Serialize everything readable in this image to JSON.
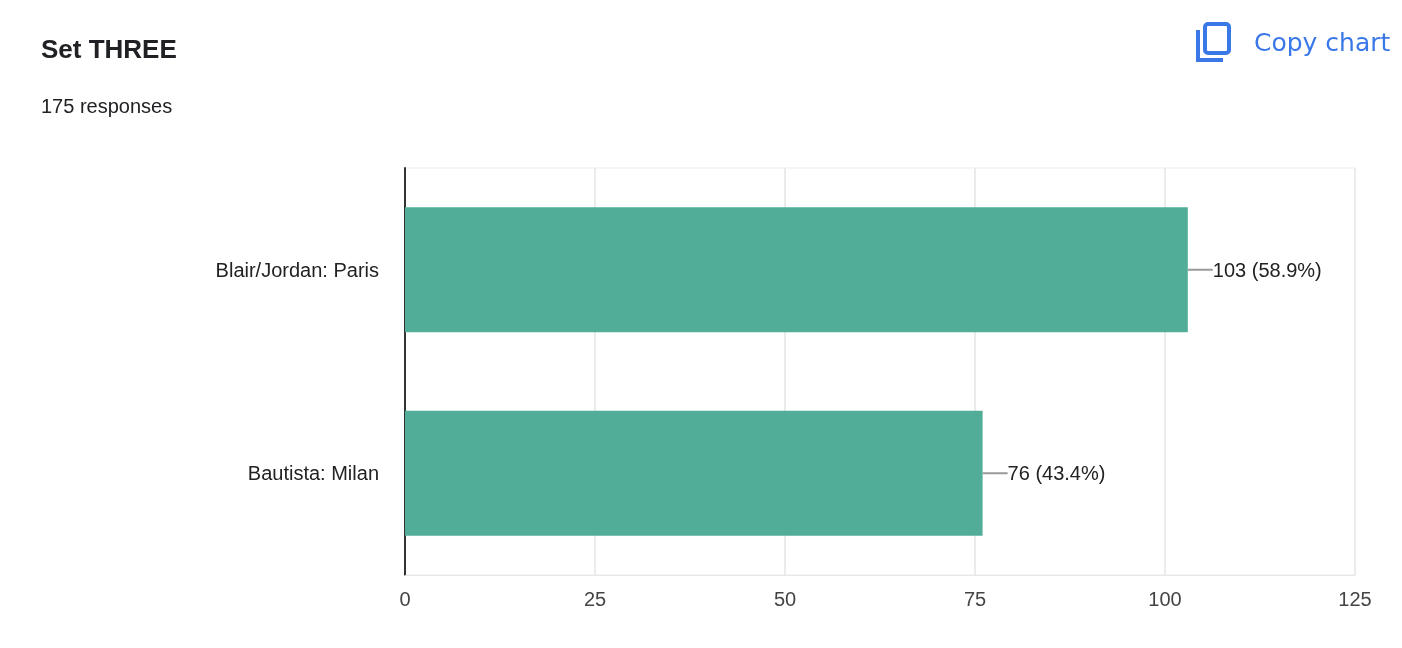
{
  "chart_data": {
    "type": "bar",
    "orientation": "horizontal",
    "title": "Set THREE",
    "subtitle": "175 responses",
    "categories": [
      "Blair/Jordan: Paris",
      "Bautista: Milan"
    ],
    "values": [
      103,
      76
    ],
    "value_labels": [
      "103 (58.9%)",
      "76 (43.4%)"
    ],
    "color": "#51ad98",
    "xlim": [
      0,
      125
    ],
    "xticks": [
      0,
      25,
      50,
      75,
      100,
      125
    ],
    "grid": "x",
    "annotations": [
      "Copy chart"
    ]
  }
}
